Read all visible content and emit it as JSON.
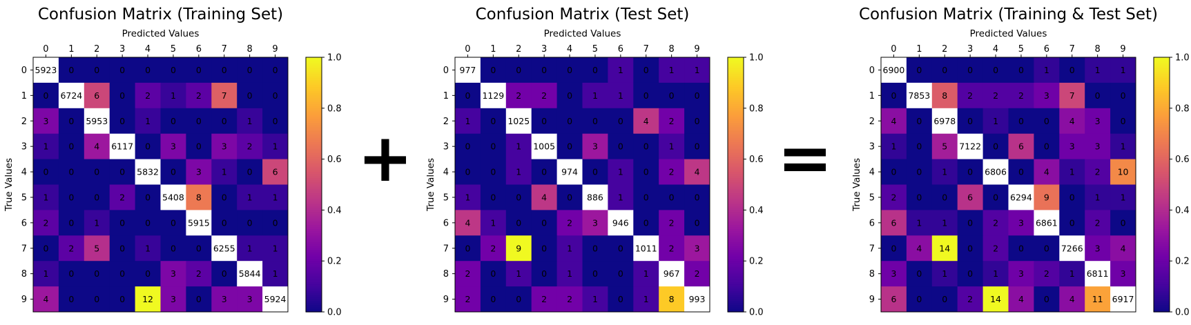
{
  "operators": {
    "plus": "+",
    "equals": "="
  },
  "colorbar_ticks": [
    "0.0",
    "0.2",
    "0.4",
    "0.6",
    "0.8",
    "1.0"
  ],
  "colormap": [
    "#0d0887",
    "#46039f",
    "#7201a8",
    "#9c179e",
    "#bd3786",
    "#d8576b",
    "#ed7953",
    "#fb9f3a",
    "#fdca26",
    "#f0f921"
  ],
  "chart_data": [
    {
      "type": "heatmap",
      "title": "Confusion Matrix (Training Set)",
      "xlabel": "Predicted Values",
      "ylabel": "True Values",
      "x_ticks": [
        "0",
        "1",
        "2",
        "3",
        "4",
        "5",
        "6",
        "7",
        "8",
        "9"
      ],
      "y_ticks": [
        "0",
        "1",
        "2",
        "3",
        "4",
        "5",
        "6",
        "7",
        "8",
        "9"
      ],
      "colorbar_range": [
        0,
        1
      ],
      "matrix": [
        [
          5923,
          0,
          0,
          0,
          0,
          0,
          0,
          0,
          0,
          0
        ],
        [
          0,
          6724,
          6,
          0,
          2,
          1,
          2,
          7,
          0,
          0
        ],
        [
          3,
          0,
          5953,
          0,
          1,
          0,
          0,
          0,
          1,
          0
        ],
        [
          1,
          0,
          4,
          6117,
          0,
          3,
          0,
          3,
          2,
          1
        ],
        [
          0,
          0,
          0,
          0,
          5832,
          0,
          3,
          1,
          0,
          6
        ],
        [
          1,
          0,
          0,
          2,
          0,
          5408,
          8,
          0,
          1,
          1
        ],
        [
          2,
          0,
          1,
          0,
          0,
          0,
          5915,
          0,
          0,
          0
        ],
        [
          0,
          2,
          5,
          0,
          1,
          0,
          0,
          6255,
          1,
          1
        ],
        [
          1,
          0,
          0,
          0,
          0,
          3,
          2,
          0,
          5844,
          1
        ],
        [
          4,
          0,
          0,
          0,
          12,
          3,
          0,
          3,
          3,
          5924
        ]
      ]
    },
    {
      "type": "heatmap",
      "title": "Confusion Matrix (Test Set)",
      "xlabel": "Predicted Values",
      "ylabel": "True Values",
      "x_ticks": [
        "0",
        "1",
        "2",
        "3",
        "4",
        "5",
        "6",
        "7",
        "8",
        "9"
      ],
      "y_ticks": [
        "0",
        "1",
        "2",
        "3",
        "4",
        "5",
        "6",
        "7",
        "8",
        "9"
      ],
      "colorbar_range": [
        0,
        1
      ],
      "matrix": [
        [
          977,
          0,
          0,
          0,
          0,
          0,
          1,
          0,
          1,
          1
        ],
        [
          0,
          1129,
          2,
          2,
          0,
          1,
          1,
          0,
          0,
          0
        ],
        [
          1,
          0,
          1025,
          0,
          0,
          0,
          0,
          4,
          2,
          0
        ],
        [
          0,
          0,
          1,
          1005,
          0,
          3,
          0,
          0,
          1,
          0
        ],
        [
          0,
          0,
          1,
          0,
          974,
          0,
          1,
          0,
          2,
          4
        ],
        [
          1,
          0,
          0,
          4,
          0,
          886,
          1,
          0,
          0,
          0
        ],
        [
          4,
          1,
          0,
          0,
          2,
          3,
          946,
          0,
          2,
          0
        ],
        [
          0,
          2,
          9,
          0,
          1,
          0,
          0,
          1011,
          2,
          3
        ],
        [
          2,
          0,
          1,
          0,
          1,
          0,
          0,
          1,
          967,
          2
        ],
        [
          2,
          0,
          0,
          2,
          2,
          1,
          0,
          1,
          8,
          993
        ]
      ]
    },
    {
      "type": "heatmap",
      "title": "Confusion Matrix (Training & Test Set)",
      "xlabel": "Predicted Values",
      "ylabel": "True Values",
      "x_ticks": [
        "0",
        "1",
        "2",
        "3",
        "4",
        "5",
        "6",
        "7",
        "8",
        "9"
      ],
      "y_ticks": [
        "0",
        "1",
        "2",
        "3",
        "4",
        "5",
        "6",
        "7",
        "8",
        "9"
      ],
      "colorbar_range": [
        0,
        1
      ],
      "matrix": [
        [
          6900,
          0,
          0,
          0,
          0,
          0,
          1,
          0,
          1,
          1
        ],
        [
          0,
          7853,
          8,
          2,
          2,
          2,
          3,
          7,
          0,
          0
        ],
        [
          4,
          0,
          6978,
          0,
          1,
          0,
          0,
          4,
          3,
          0
        ],
        [
          1,
          0,
          5,
          7122,
          0,
          6,
          0,
          3,
          3,
          1
        ],
        [
          0,
          0,
          1,
          0,
          6806,
          0,
          4,
          1,
          2,
          10
        ],
        [
          2,
          0,
          0,
          6,
          0,
          6294,
          9,
          0,
          1,
          1
        ],
        [
          6,
          1,
          1,
          0,
          2,
          3,
          6861,
          0,
          2,
          0
        ],
        [
          0,
          4,
          14,
          0,
          2,
          0,
          0,
          7266,
          3,
          4
        ],
        [
          3,
          0,
          1,
          0,
          1,
          3,
          2,
          1,
          6811,
          3
        ],
        [
          6,
          0,
          0,
          2,
          14,
          4,
          0,
          4,
          11,
          6917
        ]
      ]
    }
  ]
}
